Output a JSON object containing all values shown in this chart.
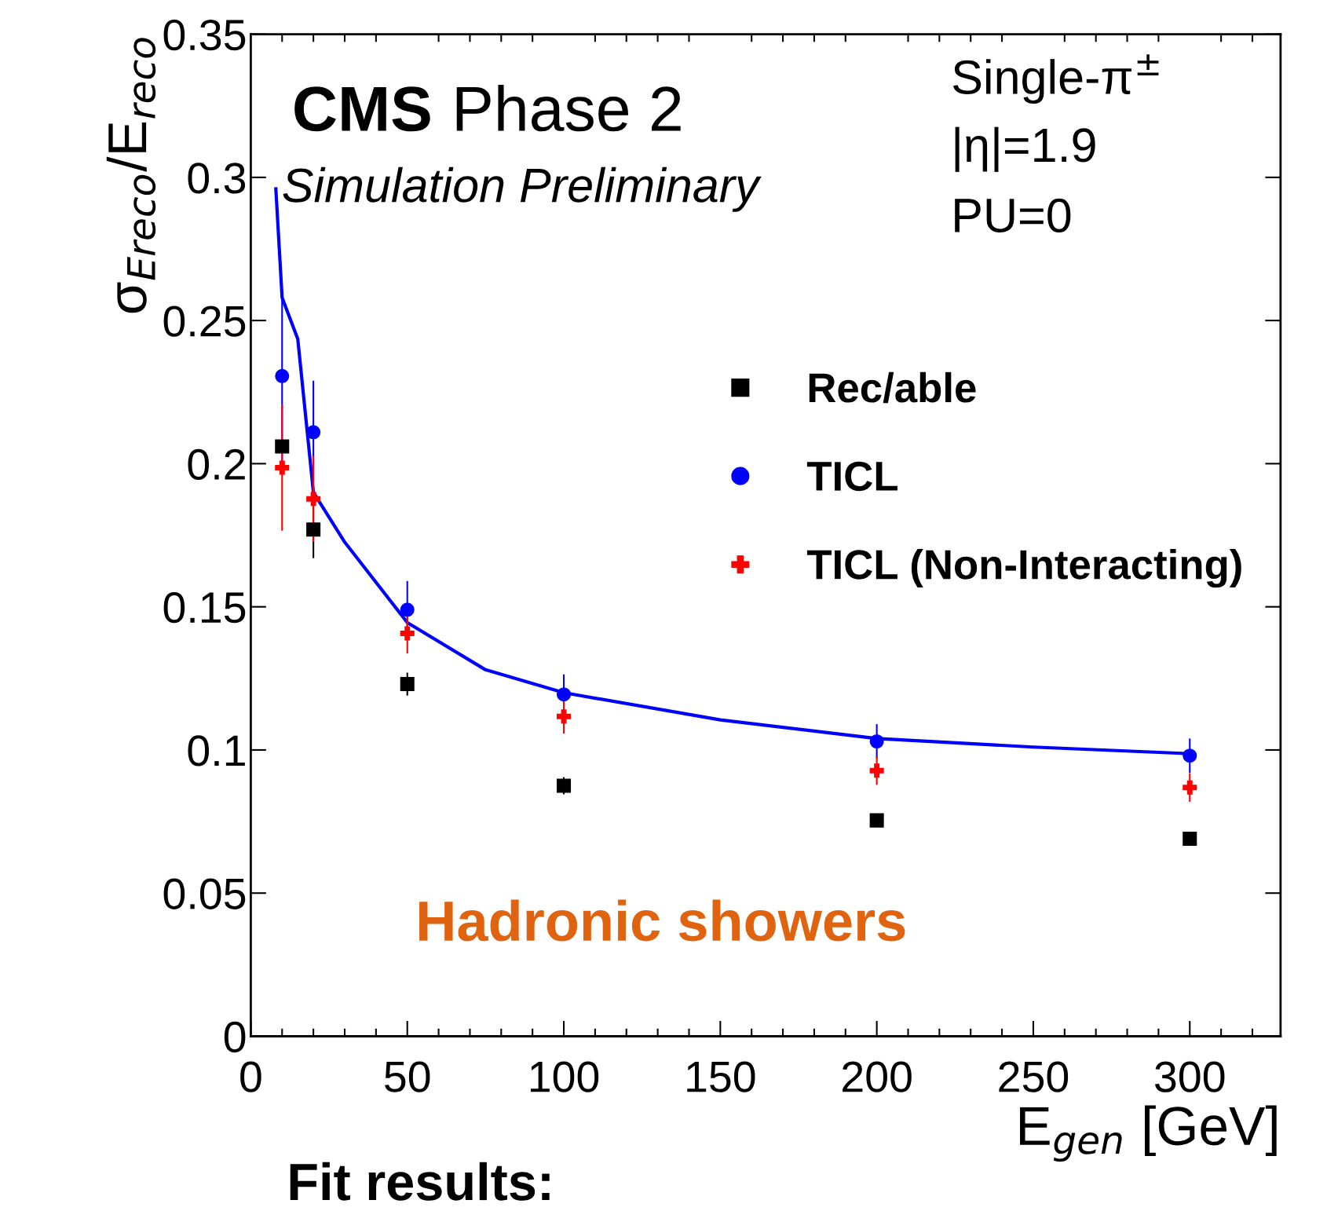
{
  "chart_data": {
    "type": "scatter",
    "xlabel": "E$_{gen}$ [GeV]",
    "ylabel": "σ$_{Ereco}$/E$_{reco}$",
    "annotations": [
      "CMS",
      "Phase 2",
      "Simulation Preliminary",
      "Single-π$^{±}$",
      "|η|=1.9",
      "PU=0",
      "Hadronic showers",
      "Fit results:"
    ],
    "x": [
      10,
      20,
      50,
      100,
      200,
      300
    ],
    "series": [
      {
        "name": "Rec/able",
        "color": "#000000",
        "marker": "square",
        "values": [
          0.206,
          0.177,
          0.123,
          0.0875,
          0.0754,
          0.069
        ],
        "errors": [
          null,
          0.01,
          0.004,
          0.003,
          0.002,
          0.002
        ]
      },
      {
        "name": "TICL",
        "color": "#0000ff",
        "marker": "circle",
        "values": [
          0.2306,
          0.211,
          0.149,
          0.1194,
          0.103,
          0.098
        ],
        "errors": [
          0.03,
          0.018,
          0.01,
          0.007,
          0.006,
          0.006
        ]
      },
      {
        "name": "TICL (Non-Interacting)",
        "color": "#ff0000",
        "marker": "cross",
        "values": [
          0.1986,
          0.1877,
          0.1407,
          0.1117,
          0.0928,
          0.0869
        ],
        "errors": [
          0.022,
          0.015,
          0.007,
          0.006,
          0.005,
          0.005
        ]
      },
      {
        "type": "line",
        "color": "#0000ff",
        "marker": "none",
        "x": [
          8,
          10,
          15,
          20,
          30,
          50,
          75,
          100,
          150,
          200,
          250,
          300
        ],
        "values": [
          0.296,
          0.258,
          0.2436,
          0.19,
          0.1726,
          0.1445,
          0.128,
          0.12,
          0.1105,
          0.104,
          0.101,
          0.0987
        ]
      }
    ],
    "xlim": [
      0,
      329
    ],
    "xticks": [
      0,
      50,
      100,
      150,
      200,
      250,
      300
    ],
    "ylim": [
      0,
      0.35
    ],
    "yticks": [
      {
        "value": 0,
        "label": "0"
      },
      0.05,
      0.1,
      0.15,
      0.2,
      0.25,
      0.3,
      0.35
    ],
    "legend": "top right",
    "grid": false
  }
}
